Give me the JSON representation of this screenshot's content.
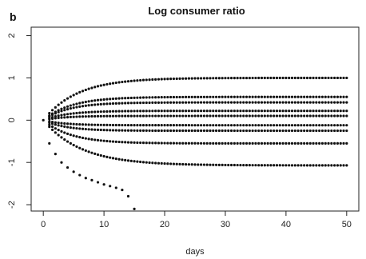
{
  "panel_label": "b",
  "chart_data": {
    "type": "scatter",
    "title": "Log consumer ratio",
    "xlabel": "days",
    "ylabel": "",
    "xlim": [
      -2,
      52
    ],
    "ylim": [
      -2.15,
      2.2
    ],
    "x_ticks": [
      0,
      10,
      20,
      30,
      40,
      50
    ],
    "x_tick_labels": [
      "0",
      "10",
      "20",
      "30",
      "40",
      "50"
    ],
    "y_ticks": [
      -2,
      -1,
      0,
      1,
      2
    ],
    "y_tick_labels": [
      "-2",
      "-1",
      "0",
      "1",
      "2"
    ],
    "y_tick_label_rotation": "vertical",
    "grid": false,
    "legend": "none",
    "marker_color": "#111111",
    "x_step": 0.5,
    "x_max": 50,
    "start_point": {
      "x": 0,
      "y": 0
    },
    "series": [
      {
        "asymptote": 1.0,
        "rate": 0.18,
        "x_end": 50
      },
      {
        "asymptote": 0.55,
        "rate": 0.22,
        "x_end": 50
      },
      {
        "asymptote": 0.42,
        "rate": 0.24,
        "x_end": 50
      },
      {
        "asymptote": 0.22,
        "rate": 0.26,
        "x_end": 50
      },
      {
        "asymptote": 0.1,
        "rate": 0.3,
        "x_end": 50
      },
      {
        "asymptote": -0.12,
        "rate": 0.3,
        "x_end": 50
      },
      {
        "asymptote": -0.25,
        "rate": 0.27,
        "x_end": 50
      },
      {
        "asymptote": -0.55,
        "rate": 0.22,
        "x_end": 50
      },
      {
        "asymptote": -1.07,
        "rate": 0.16,
        "x_end": 50
      }
    ],
    "diverging_series": {
      "x": [
        1,
        2,
        3,
        4,
        5,
        6,
        7,
        8,
        9,
        10,
        11,
        12,
        13,
        14,
        15
      ],
      "y": [
        -0.55,
        -0.8,
        -1.0,
        -1.12,
        -1.22,
        -1.3,
        -1.37,
        -1.42,
        -1.47,
        -1.52,
        -1.56,
        -1.6,
        -1.65,
        -1.8,
        -2.1
      ]
    }
  }
}
